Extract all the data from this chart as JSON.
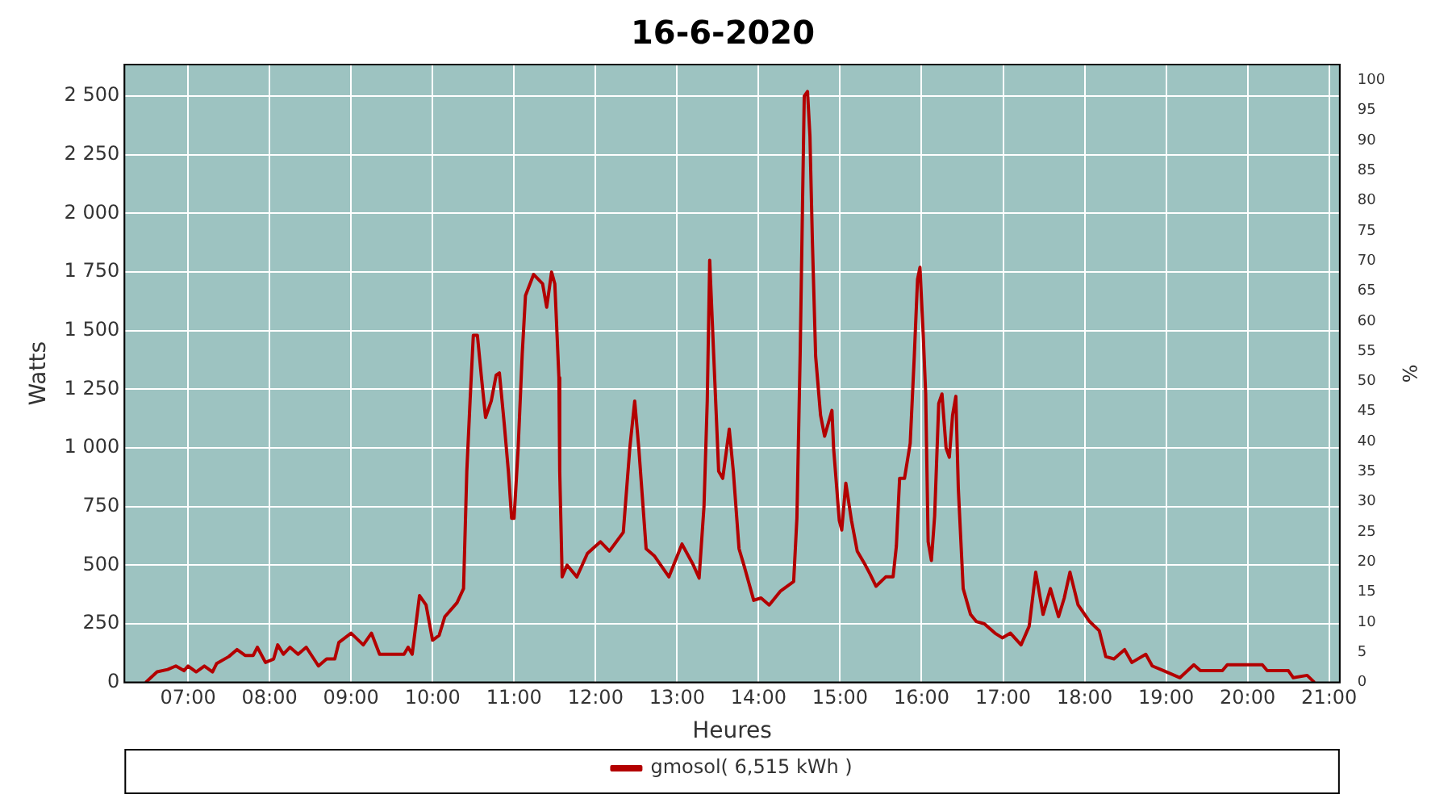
{
  "chart_data": {
    "type": "line",
    "title": "16-6-2020",
    "xlabel": "Heures",
    "ylabel": "Watts",
    "y2label": "%",
    "xlim": [
      6.22,
      21.13
    ],
    "xticks": [
      {
        "value": 7,
        "label": "07:00"
      },
      {
        "value": 8,
        "label": "08:00"
      },
      {
        "value": 9,
        "label": "09:00"
      },
      {
        "value": 10,
        "label": "10:00"
      },
      {
        "value": 11,
        "label": "11:00"
      },
      {
        "value": 12,
        "label": "12:00"
      },
      {
        "value": 13,
        "label": "13:00"
      },
      {
        "value": 14,
        "label": "14:00"
      },
      {
        "value": 15,
        "label": "15:00"
      },
      {
        "value": 16,
        "label": "16:00"
      },
      {
        "value": 17,
        "label": "17:00"
      },
      {
        "value": 18,
        "label": "18:00"
      },
      {
        "value": 19,
        "label": "19:00"
      },
      {
        "value": 20,
        "label": "20:00"
      },
      {
        "value": 21,
        "label": "21:00"
      }
    ],
    "ylim": [
      0,
      2635
    ],
    "yticks": [
      0,
      250,
      500,
      750,
      {
        "value": 1000,
        "label": "1 000"
      },
      {
        "value": 1250,
        "label": "1 250"
      },
      {
        "value": 1500,
        "label": "1 500"
      },
      {
        "value": 1750,
        "label": "1 750"
      },
      {
        "value": 2000,
        "label": "2 000"
      },
      {
        "value": 2250,
        "label": "2 250"
      },
      {
        "value": 2500,
        "label": "2 500"
      }
    ],
    "y2lim": [
      0,
      102.6
    ],
    "y2ticks": [
      0,
      5,
      10,
      15,
      20,
      25,
      30,
      35,
      40,
      45,
      50,
      55,
      60,
      65,
      70,
      75,
      80,
      85,
      90,
      95,
      100
    ],
    "grid": true,
    "legend": "bottom",
    "marker": "none",
    "line_style": "solid",
    "series": [
      {
        "name": "gmosol( 6,515 kWh )",
        "color": "#b30000",
        "x": [
          6.48,
          6.62,
          6.75,
          6.85,
          6.95,
          7.0,
          7.1,
          7.2,
          7.3,
          7.35,
          7.5,
          7.6,
          7.7,
          7.8,
          7.85,
          7.95,
          8.05,
          8.1,
          8.17,
          8.25,
          8.35,
          8.45,
          8.6,
          8.7,
          8.8,
          8.85,
          9.0,
          9.15,
          9.25,
          9.35,
          9.5,
          9.65,
          9.7,
          9.75,
          9.84,
          9.92,
          10.0,
          10.08,
          10.15,
          10.3,
          10.38,
          10.42,
          10.46,
          10.5,
          10.55,
          10.6,
          10.65,
          10.72,
          10.78,
          10.82,
          10.88,
          10.93,
          10.97,
          11.0,
          11.05,
          11.1,
          11.14,
          11.24,
          11.35,
          11.4,
          11.46,
          11.5,
          11.55,
          11.56,
          11.59,
          11.65,
          11.77,
          11.9,
          12.06,
          12.17,
          12.34,
          12.42,
          12.48,
          12.53,
          12.62,
          12.72,
          12.9,
          13.06,
          13.2,
          13.27,
          13.33,
          13.37,
          13.4,
          13.45,
          13.51,
          13.56,
          13.64,
          13.69,
          13.76,
          13.82,
          13.94,
          14.03,
          14.13,
          14.27,
          14.43,
          14.47,
          14.51,
          14.56,
          14.6,
          14.63,
          14.66,
          14.7,
          14.76,
          14.81,
          14.9,
          14.92,
          14.99,
          15.02,
          15.07,
          15.14,
          15.21,
          15.31,
          15.37,
          15.44,
          15.56,
          15.65,
          15.69,
          15.73,
          15.79,
          15.86,
          15.91,
          15.95,
          15.98,
          16.02,
          16.05,
          16.08,
          16.12,
          16.16,
          16.21,
          16.25,
          16.3,
          16.34,
          16.38,
          16.42,
          16.45,
          16.51,
          16.6,
          16.67,
          16.77,
          16.9,
          16.99,
          17.09,
          17.22,
          17.32,
          17.4,
          17.49,
          17.58,
          17.68,
          17.75,
          17.82,
          17.92,
          18.06,
          18.18,
          18.26,
          18.36,
          18.49,
          18.58,
          18.75,
          18.83,
          18.97,
          19.17,
          19.34,
          19.42,
          19.69,
          19.75,
          20.18,
          20.24,
          20.5,
          20.56,
          20.73,
          20.82
        ],
        "values": [
          0,
          45,
          55,
          70,
          50,
          70,
          45,
          70,
          45,
          80,
          110,
          140,
          115,
          115,
          150,
          85,
          100,
          160,
          120,
          150,
          120,
          150,
          70,
          100,
          100,
          170,
          210,
          160,
          210,
          120,
          120,
          120,
          150,
          120,
          370,
          330,
          180,
          200,
          280,
          340,
          400,
          900,
          1200,
          1480,
          1480,
          1300,
          1130,
          1200,
          1310,
          1320,
          1100,
          900,
          700,
          700,
          1000,
          1400,
          1650,
          1740,
          1700,
          1600,
          1750,
          1700,
          1300,
          900,
          450,
          500,
          450,
          550,
          600,
          560,
          640,
          1000,
          1200,
          1000,
          570,
          540,
          450,
          590,
          500,
          445,
          750,
          1200,
          1800,
          1390,
          900,
          870,
          1080,
          900,
          570,
          500,
          350,
          360,
          330,
          390,
          430,
          700,
          1400,
          2500,
          2520,
          2330,
          1880,
          1390,
          1140,
          1050,
          1160,
          1000,
          690,
          650,
          850,
          690,
          560,
          500,
          460,
          410,
          450,
          450,
          580,
          870,
          870,
          1020,
          1390,
          1720,
          1770,
          1480,
          1230,
          600,
          520,
          710,
          1190,
          1230,
          1000,
          960,
          1140,
          1220,
          830,
          400,
          290,
          260,
          250,
          210,
          190,
          210,
          160,
          240,
          470,
          290,
          400,
          280,
          360,
          470,
          330,
          260,
          220,
          110,
          100,
          140,
          85,
          120,
          70,
          50,
          20,
          75,
          50,
          50,
          75,
          75,
          50,
          50,
          20,
          30,
          0
        ]
      }
    ]
  }
}
